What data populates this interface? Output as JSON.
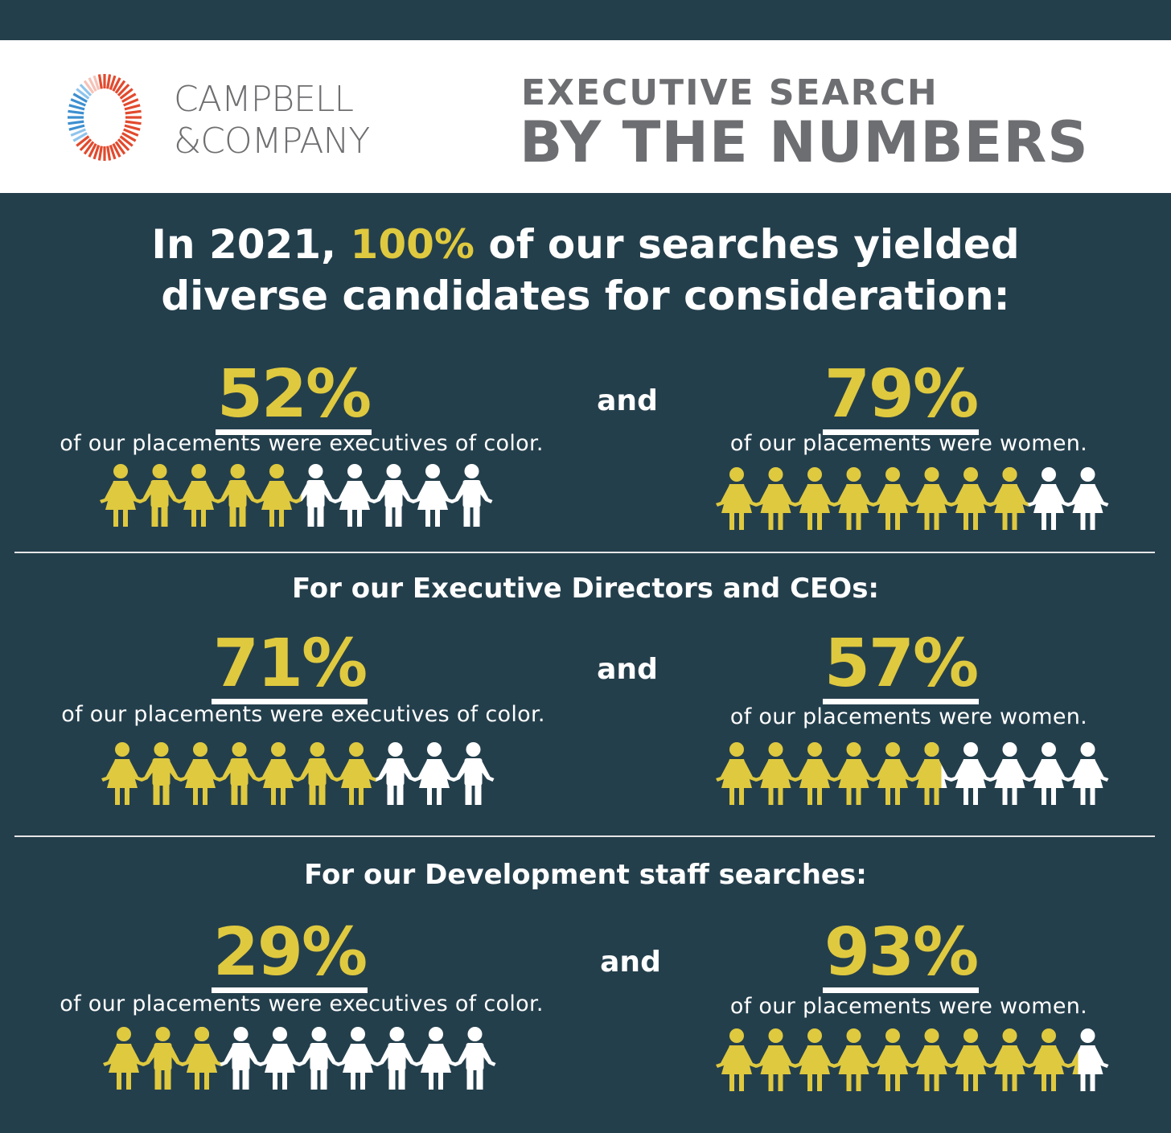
{
  "brand": {
    "name_line1": "CAMPBELL",
    "name_line2": "&COMPANY"
  },
  "title": {
    "line1": "EXECUTIVE SEARCH",
    "line2": "BY THE NUMBERS"
  },
  "headline": {
    "before": "In 2021, ",
    "highlight": "100%",
    "after": " of our searches yielded",
    "line2": "diverse candidates for consideration:"
  },
  "connector": "and",
  "colors": {
    "background": "#243f4c",
    "accent": "#dfc93f",
    "white": "#ffffff"
  },
  "sections": [
    {
      "heading": "",
      "left": {
        "value_label": "52%",
        "caption": "of our placements were executives of color."
      },
      "right": {
        "value_label": "79%",
        "caption": "of our placements were women."
      }
    },
    {
      "heading": "For our Executive Directors and CEOs:",
      "left": {
        "value_label": "71%",
        "caption": "of our placements were executives of color."
      },
      "right": {
        "value_label": "57%",
        "caption": "of our placements were women."
      }
    },
    {
      "heading": "For our Development staff searches:",
      "left": {
        "value_label": "29%",
        "caption": "of our placements were executives of color."
      },
      "right": {
        "value_label": "93%",
        "caption": "of our placements were women."
      }
    }
  ],
  "chart_data": [
    {
      "type": "bar",
      "name": "2021 all searches - executives of color",
      "value": 52,
      "unit": "%",
      "icons": 10,
      "icon_style": "alternating"
    },
    {
      "type": "bar",
      "name": "2021 all searches - women",
      "value": 79,
      "unit": "%",
      "icons": 10,
      "icon_style": "woman"
    },
    {
      "type": "bar",
      "name": "Executive Directors and CEOs - executives of color",
      "value": 71,
      "unit": "%",
      "icons": 10,
      "icon_style": "alternating"
    },
    {
      "type": "bar",
      "name": "Executive Directors and CEOs - women",
      "value": 57,
      "unit": "%",
      "icons": 10,
      "icon_style": "woman"
    },
    {
      "type": "bar",
      "name": "Development staff searches - executives of color",
      "value": 29,
      "unit": "%",
      "icons": 10,
      "icon_style": "alternating"
    },
    {
      "type": "bar",
      "name": "Development staff searches - women",
      "value": 93,
      "unit": "%",
      "icons": 10,
      "icon_style": "woman"
    }
  ]
}
